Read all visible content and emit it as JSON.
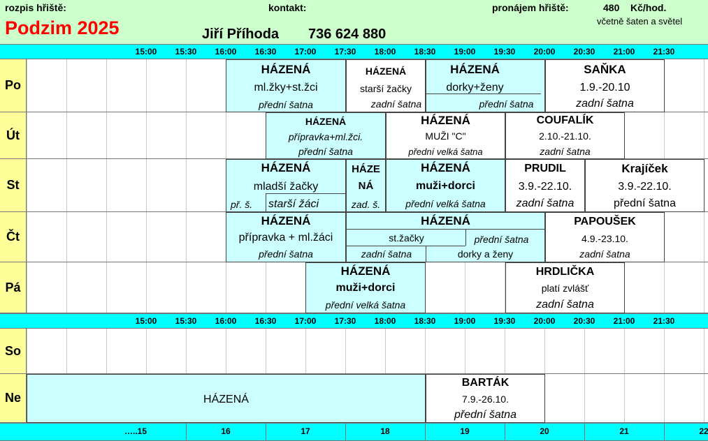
{
  "header": {
    "rozpis_label": "rozpis hřiště:",
    "kontakt_label": "kontakt:",
    "pronajem_label": "pronájem hřiště:",
    "price_value": "480",
    "price_unit": "Kč/hod.",
    "price_note": "včetně šaten a světel",
    "season": "Podzim 2025",
    "contact_name": "Jiří Příhoda",
    "contact_phone": "736 624 880"
  },
  "times": [
    "15:00",
    "15:30",
    "16:00",
    "16:30",
    "17:00",
    "17:30",
    "18:00",
    "18:30",
    "19:00",
    "19:30",
    "20:00",
    "20:30",
    "21:00",
    "21:30"
  ],
  "footer_ticks": [
    "…..15",
    "16",
    "17",
    "18",
    "19",
    "20",
    "21",
    "22"
  ],
  "days": [
    "Po",
    "Út",
    "St",
    "Čt",
    "Pá",
    "So",
    "Ne"
  ],
  "po": {
    "b1_title": "HÁZENÁ",
    "b1_sub": "ml.žky+st.žci",
    "b1_room": "přední šatna",
    "b2_title": "HÁZENÁ",
    "b2_sub": "starší žačky",
    "b2_room": "zadní šatna",
    "b3_title": "HÁZENÁ",
    "b3_sub": "dorky+ženy",
    "b3_room": "přední šatna",
    "b4_title": "SAŇKA",
    "b4_sub": "1.9.-20.10",
    "b4_room": "zadní šatna"
  },
  "ut": {
    "b1_title": "HÁZENÁ",
    "b1_sub": "přípravka+ml.žci.",
    "b1_room": "přední šatna",
    "b2_title": "HÁZENÁ",
    "b2_sub": "MUŽI \"C\"",
    "b2_room": "přední velká šatna",
    "b3_title": "COUFALÍK",
    "b3_sub": "2.10.-21.10.",
    "b3_room": "zadní šatna"
  },
  "st": {
    "b1_title": "HÁZENÁ",
    "b1_sub": "mladší žačky",
    "b1_room": "př. š.",
    "b1_sub2": "starší žáci",
    "b2_title1": "HÁZE",
    "b2_title2": "NÁ",
    "b2_room": "zad. š.",
    "b3_title": "HÁZENÁ",
    "b3_sub": "muži+dorci",
    "b3_room": "přední velká šatna",
    "b4_title": "PRUDIL",
    "b4_sub": "3.9.-22.10.",
    "b4_room": "zadní šatna",
    "b5_title": "Krajíček",
    "b5_sub": "3.9.-22.10.",
    "b5_room": "přední šatna"
  },
  "ct": {
    "b1_title": "HÁZENÁ",
    "b1_sub": "přípravka + ml.žáci",
    "b1_room": "přední šatna",
    "b2_title": "HÁZENÁ",
    "b2_sub": "st.žačky",
    "b2_room": "zadní šatna",
    "b2_room2": "přední šatna",
    "b2_sub2": "dorky a ženy",
    "b3_title": "PAPOUŠEK",
    "b3_sub": "4.9.-23.10.",
    "b3_room": "zadní šatna"
  },
  "pa": {
    "b1_title": "HÁZENÁ",
    "b1_sub": "muži+dorci",
    "b1_room": "přední velká šatna",
    "b2_title": "HRDLIČKA",
    "b2_sub": "platí zvlášť",
    "b2_room": "zadní šatna"
  },
  "ne": {
    "b1_title": "HÁZENÁ",
    "b2_title": "BARTÁK",
    "b2_sub": "7.9.-26.10.",
    "b2_room": "přední šatna"
  }
}
